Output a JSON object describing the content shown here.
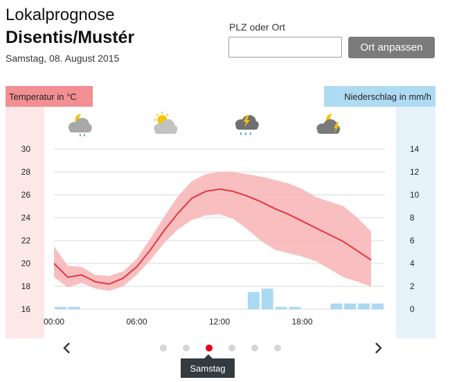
{
  "header": {
    "title_line1": "Lokalprognose",
    "title_line2": "Disentis/Mustér",
    "date": "Samstag, 08. August 2015"
  },
  "location_search": {
    "label": "PLZ oder Ort",
    "value": "",
    "placeholder": "",
    "button_label": "Ort anpassen"
  },
  "panels": {
    "temperature_header": "Temperatur in °C",
    "precipitation_header": "Niederschlag in mm/h"
  },
  "weather_icons": [
    {
      "time": "02:00",
      "icon": "partly-cloudy-night-rain-icon"
    },
    {
      "time": "08:00",
      "icon": "sun-cloud-icon"
    },
    {
      "time": "14:00",
      "icon": "thunderstorm-rain-icon"
    },
    {
      "time": "20:00",
      "icon": "thunderstorm-night-icon"
    }
  ],
  "navigation": {
    "prev": "‹",
    "next": "›",
    "days_count": 6,
    "active_index": 2,
    "active_day_label": "Samstag"
  },
  "colors": {
    "temperature_line": "#e2363d",
    "temperature_band": "#f7b3b5",
    "precip_bars": "#a9d9f3",
    "temp_header": "#f28f93",
    "precip_header": "#aedbf3",
    "active_dot": "#e2001a"
  },
  "chart_data": {
    "type": "line",
    "x_ticks": [
      "00:00",
      "06:00",
      "12:00",
      "18:00"
    ],
    "left_axis": {
      "label": "Temperatur in °C",
      "ticks": [
        16,
        18,
        20,
        22,
        24,
        26,
        28,
        30
      ],
      "ylim": [
        16,
        30
      ]
    },
    "right_axis": {
      "label": "Niederschlag in mm/h",
      "ticks": [
        0,
        2,
        4,
        6,
        8,
        10,
        12,
        14
      ],
      "ylim": [
        0,
        14
      ]
    },
    "grid": true,
    "x_hours": [
      0,
      1,
      2,
      3,
      4,
      5,
      6,
      7,
      8,
      9,
      10,
      11,
      12,
      13,
      14,
      15,
      16,
      17,
      18,
      19,
      20,
      21,
      22,
      23
    ],
    "temperature": [
      20.0,
      18.8,
      19.0,
      18.4,
      18.2,
      18.7,
      19.7,
      21.2,
      22.9,
      24.4,
      25.7,
      26.3,
      26.5,
      26.3,
      25.9,
      25.4,
      24.8,
      24.3,
      23.7,
      23.1,
      22.5,
      21.9,
      21.1,
      20.3
    ],
    "temperature_high": [
      21.5,
      19.8,
      19.7,
      19.0,
      18.9,
      19.3,
      20.4,
      22.2,
      24.1,
      25.9,
      27.2,
      27.8,
      28.0,
      28.0,
      27.8,
      27.6,
      27.3,
      27.0,
      26.5,
      25.8,
      25.4,
      25.0,
      24.0,
      22.8
    ],
    "temperature_low": [
      18.8,
      17.9,
      18.3,
      17.8,
      17.6,
      18.0,
      19.0,
      20.3,
      21.8,
      23.0,
      23.8,
      24.2,
      24.3,
      23.9,
      23.0,
      22.0,
      21.2,
      20.9,
      20.6,
      20.2,
      19.5,
      18.8,
      18.4,
      18.0
    ],
    "precipitation": [
      0.2,
      0.2,
      0,
      0,
      0,
      0,
      0,
      0,
      0,
      0,
      0,
      0,
      0,
      0,
      1.5,
      1.8,
      0.2,
      0.2,
      0,
      0,
      0.5,
      0.5,
      0.5,
      0.5
    ]
  }
}
